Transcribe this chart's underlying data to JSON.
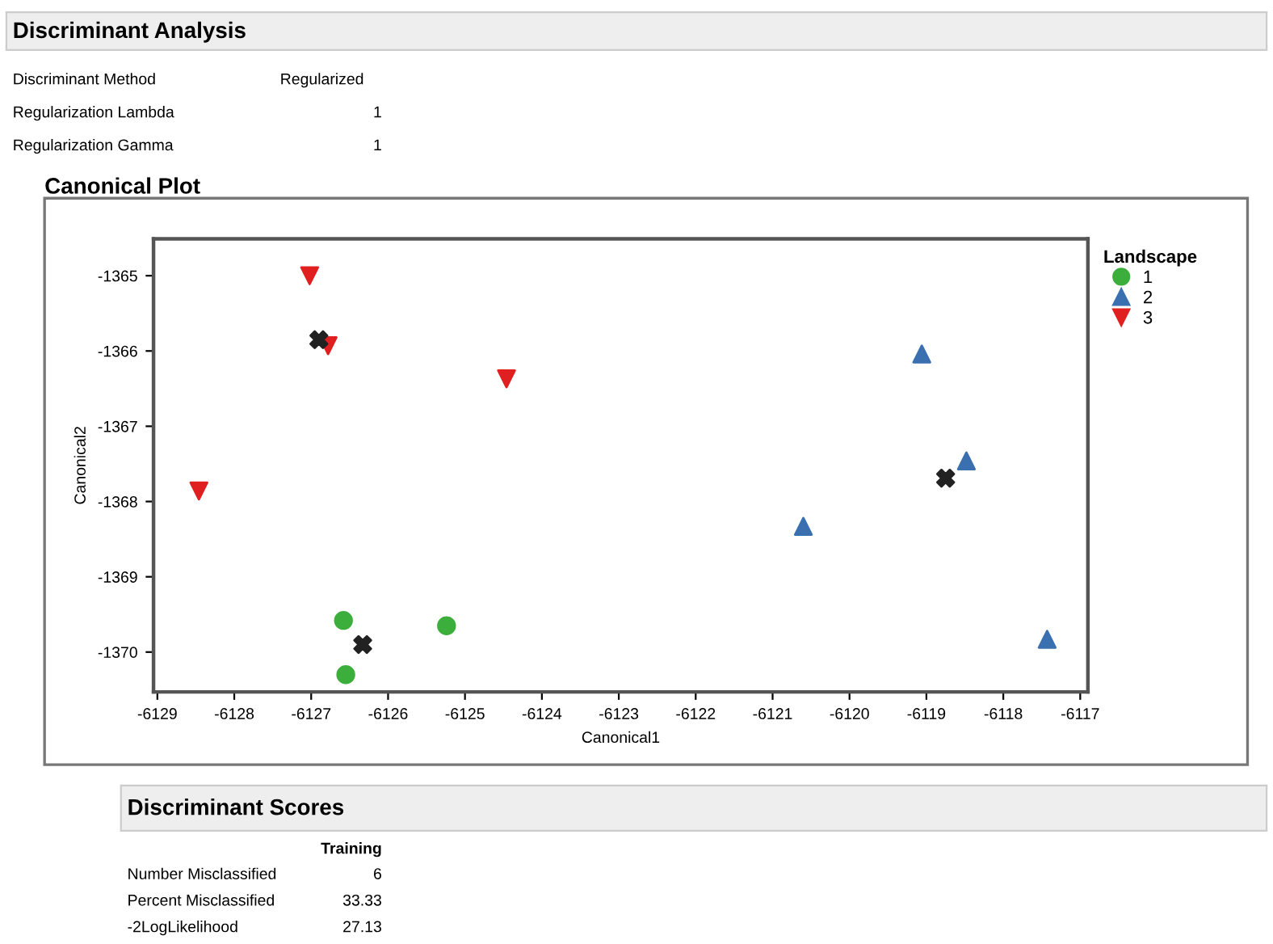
{
  "chart_data": {
    "type": "scatter",
    "title": "Canonical Plot",
    "xlabel": "Canonical1",
    "ylabel": "Canonical2",
    "legend_title": "Landscape",
    "legend": "top right",
    "grid": false,
    "xlim": [
      -6129.05,
      -6116.9
    ],
    "xticks": [
      -6129,
      -6128,
      -6127,
      -6126,
      -6125,
      -6124,
      -6123,
      -6122,
      -6121,
      -6120,
      -6119,
      -6118,
      -6117
    ],
    "ylim": [
      -1370.53,
      -1364.51
    ],
    "yticks": [
      -1365,
      -1366,
      -1367,
      -1368,
      -1369,
      -1370
    ],
    "series": [
      {
        "name": "1",
        "color": "#3cae3c",
        "marker": "circle",
        "x": [
          -6126.58,
          -6125.24,
          -6126.55
        ],
        "values": [
          -1369.58,
          -1369.65,
          -1370.3
        ]
      },
      {
        "name": "2",
        "color": "#3a6fb0",
        "marker": "triangle",
        "x": [
          -6119.06,
          -6118.48,
          -6120.6,
          -6117.43
        ],
        "values": [
          -1366.04,
          -1367.46,
          -1368.33,
          -1369.83
        ]
      },
      {
        "name": "3",
        "color": "#e02020",
        "marker": "triangle_down",
        "x": [
          -6127.02,
          -6126.78,
          -6124.46,
          -6128.46
        ],
        "values": [
          -1365.0,
          -1365.93,
          -1366.37,
          -1367.86
        ]
      },
      {
        "color": "#222222",
        "marker": "cross",
        "x": [
          -6126.9,
          -6126.33,
          -6118.75
        ],
        "values": [
          -1365.85,
          -1369.9,
          -1367.69
        ]
      }
    ],
    "annotations": [
      "Discriminant Analysis",
      "Discriminant Method",
      "Regularized",
      "Regularization Lambda",
      "1",
      "Regularization Gamma",
      "1",
      "Discriminant Scores",
      "Training",
      "Number Misclassified",
      "6",
      "Percent Misclassified",
      "33.33",
      "-2LogLikelihood",
      "27.13"
    ]
  }
}
